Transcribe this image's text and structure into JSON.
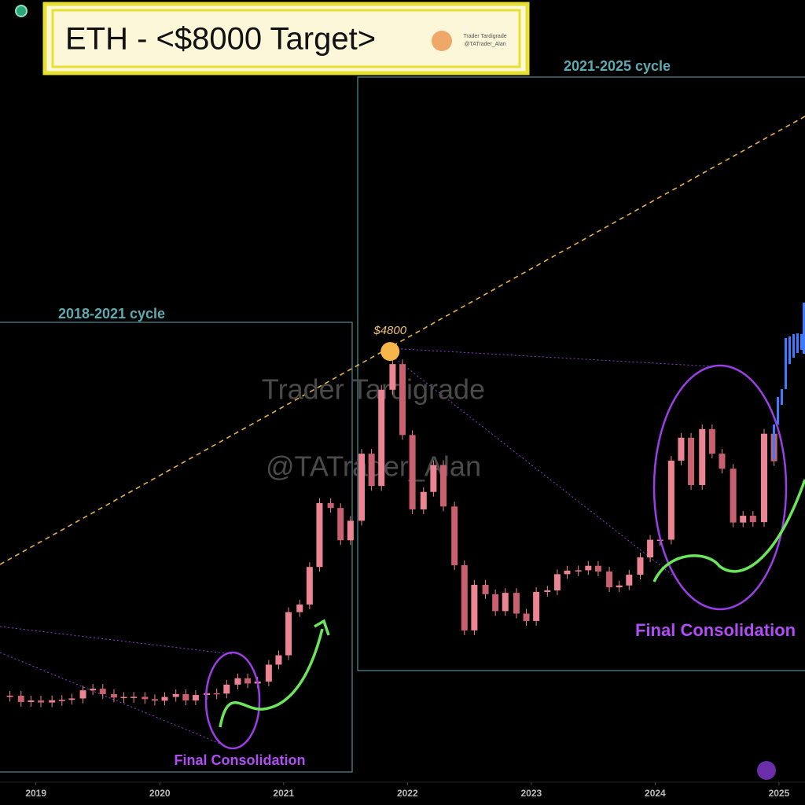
{
  "chart_data": {
    "type": "candlestick",
    "title": "ETH - <$8000 Target>",
    "logo_lines": [
      "Trader Tardigrade",
      "@TATrader_Alan"
    ],
    "watermark": [
      "Trader Tardigrade",
      "@TATrader_Alan"
    ],
    "boxes": [
      {
        "label": "2018-2021 cycle",
        "note": "Final Consolidation"
      },
      {
        "label": "2021-2025 cycle",
        "note": "Final Consolidation"
      }
    ],
    "peak": {
      "x": 2021.86,
      "value": 4800,
      "label": "$4800"
    },
    "xlim": [
      2018.71,
      2025.21
    ],
    "xticks": [
      2019,
      2020,
      2021,
      2022,
      2023,
      2024,
      2025
    ],
    "ylim": [
      -960,
      9500
    ],
    "series": [
      {
        "name": "ETH",
        "color": "#ec8593",
        "x": [
          2018.79,
          2018.88,
          2018.96,
          2019.04,
          2019.13,
          2019.21,
          2019.29,
          2019.38,
          2019.46,
          2019.54,
          2019.63,
          2019.71,
          2019.79,
          2019.88,
          2019.96,
          2020.04,
          2020.13,
          2020.21,
          2020.29,
          2020.38,
          2020.46,
          2020.54,
          2020.63,
          2020.71,
          2020.79,
          2020.88,
          2020.96,
          2021.04,
          2021.13,
          2021.21,
          2021.29,
          2021.38,
          2021.46,
          2021.54,
          2021.63,
          2021.71,
          2021.79,
          2021.88,
          2021.96,
          2022.04,
          2022.13,
          2022.21,
          2022.29,
          2022.38,
          2022.46,
          2022.54,
          2022.63,
          2022.71,
          2022.79,
          2022.88,
          2022.96,
          2023.04,
          2023.13,
          2023.21,
          2023.29,
          2023.38,
          2023.46,
          2023.54,
          2023.63,
          2023.71,
          2023.79,
          2023.88,
          2023.96,
          2024.04,
          2024.13,
          2024.21,
          2024.29,
          2024.38,
          2024.46,
          2024.54,
          2024.63,
          2024.71,
          2024.79,
          2024.88,
          2024.96
        ],
        "values": [
          197,
          113,
          133,
          106,
          136,
          141,
          160,
          268,
          290,
          218,
          172,
          180,
          182,
          151,
          130,
          180,
          218,
          133,
          206,
          230,
          225,
          345,
          430,
          360,
          386,
          612,
          737,
          1314,
          1416,
          1918,
          2773,
          2707,
          2275,
          2536,
          3433,
          3001,
          4288,
          4631,
          3683,
          2688,
          2922,
          3282,
          2727,
          1942,
          1070,
          1679,
          1554,
          1328,
          1572,
          1295,
          1196,
          1584,
          1605,
          1822,
          1870,
          1874,
          1934,
          1857,
          1646,
          1671,
          1815,
          2046,
          2282,
          2283,
          3340,
          3647,
          3014,
          3762,
          3433,
          3232,
          2513,
          2603,
          2518,
          3700,
          3332
        ]
      }
    ]
  }
}
